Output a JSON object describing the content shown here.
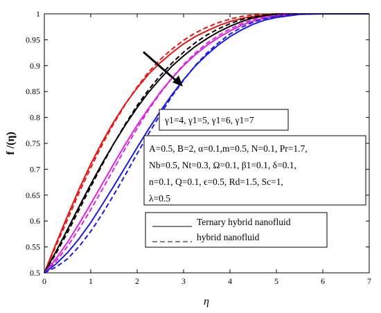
{
  "chart_data": {
    "type": "line",
    "title": "",
    "xlabel": "η",
    "ylabel": "f /(η)",
    "xlim": [
      0,
      7
    ],
    "ylim": [
      0.5,
      1
    ],
    "x_ticks": [
      "0",
      "1",
      "2",
      "3",
      "4",
      "5",
      "6",
      "7"
    ],
    "y_ticks": [
      "0.5",
      "0.55",
      "0.6",
      "0.65",
      "0.7",
      "0.75",
      "0.8",
      "0.85",
      "0.9",
      "0.95",
      "1"
    ],
    "gamma_label": "γ1=4, γ1=5, γ1=6, γ1=7",
    "params_lines": [
      "A=0.5, B=2, α=0.1,m=0.5, N=0.1, Pr=1.7,",
      "Nb=0.5, Nt=0.3, Ω=0.1, β1=0.1, δ=0.1,",
      "n=0.1, Q=0.1, ϵ=0.5, Rd=1.5, Sc=1,",
      "λ=0.5"
    ],
    "legend": [
      {
        "label": "Ternary hybrid nanofluid",
        "dash": "solid"
      },
      {
        "label": "hybrid nanofluid",
        "dash": "dashed"
      }
    ],
    "arrow_direction": "increasing γ1",
    "x": [
      0,
      0.25,
      0.5,
      0.75,
      1,
      1.25,
      1.5,
      1.75,
      2,
      2.25,
      2.5,
      2.75,
      3,
      3.25,
      3.5,
      3.75,
      4,
      4.25,
      4.5,
      4.75,
      5,
      5.5,
      6,
      6.5,
      7
    ],
    "series": [
      {
        "style": "solid",
        "color": "#ee1111",
        "values": [
          0.5,
          0.556,
          0.61,
          0.662,
          0.71,
          0.753,
          0.792,
          0.827,
          0.857,
          0.884,
          0.906,
          0.925,
          0.942,
          0.956,
          0.967,
          0.977,
          0.985,
          0.991,
          0.995,
          0.998,
          1.0,
          1.0,
          1.0,
          1.0,
          1.0
        ]
      },
      {
        "style": "dashed",
        "color": "#ee1111",
        "values": [
          0.5,
          0.552,
          0.603,
          0.655,
          0.703,
          0.748,
          0.789,
          0.826,
          0.859,
          0.888,
          0.912,
          0.932,
          0.949,
          0.963,
          0.974,
          0.983,
          0.99,
          0.995,
          0.998,
          0.999,
          1.0,
          1.0,
          1.0,
          1.0,
          1.0
        ]
      },
      {
        "style": "solid",
        "color": "#000000",
        "values": [
          0.5,
          0.541,
          0.584,
          0.628,
          0.671,
          0.712,
          0.75,
          0.786,
          0.819,
          0.849,
          0.875,
          0.899,
          0.919,
          0.937,
          0.952,
          0.965,
          0.976,
          0.985,
          0.992,
          0.996,
          0.999,
          1.0,
          1.0,
          1.0,
          1.0
        ]
      },
      {
        "style": "dashed",
        "color": "#000000",
        "values": [
          0.5,
          0.537,
          0.578,
          0.622,
          0.666,
          0.709,
          0.75,
          0.788,
          0.823,
          0.854,
          0.881,
          0.905,
          0.926,
          0.944,
          0.959,
          0.971,
          0.981,
          0.989,
          0.994,
          0.997,
          0.999,
          1.0,
          1.0,
          1.0,
          1.0
        ]
      },
      {
        "style": "solid",
        "color": "#e020e0",
        "values": [
          0.5,
          0.527,
          0.559,
          0.595,
          0.633,
          0.672,
          0.711,
          0.749,
          0.785,
          0.818,
          0.849,
          0.876,
          0.9,
          0.921,
          0.939,
          0.954,
          0.967,
          0.978,
          0.986,
          0.992,
          0.996,
          1.0,
          1.0,
          1.0,
          1.0
        ]
      },
      {
        "style": "dashed",
        "color": "#e020e0",
        "values": [
          0.5,
          0.522,
          0.551,
          0.585,
          0.622,
          0.661,
          0.701,
          0.741,
          0.779,
          0.815,
          0.847,
          0.876,
          0.902,
          0.924,
          0.943,
          0.958,
          0.971,
          0.981,
          0.989,
          0.994,
          0.997,
          1.0,
          1.0,
          1.0,
          1.0
        ]
      },
      {
        "style": "solid",
        "color": "#1a1ae6",
        "values": [
          0.5,
          0.517,
          0.539,
          0.566,
          0.597,
          0.632,
          0.668,
          0.705,
          0.742,
          0.778,
          0.812,
          0.844,
          0.873,
          0.899,
          0.921,
          0.94,
          0.956,
          0.969,
          0.98,
          0.988,
          0.993,
          0.999,
          1.0,
          1.0,
          1.0
        ]
      },
      {
        "style": "dashed",
        "color": "#1a1ae6",
        "values": [
          0.5,
          0.511,
          0.527,
          0.551,
          0.58,
          0.614,
          0.651,
          0.69,
          0.73,
          0.769,
          0.806,
          0.841,
          0.872,
          0.9,
          0.924,
          0.944,
          0.961,
          0.974,
          0.984,
          0.991,
          0.995,
          1.0,
          1.0,
          1.0,
          1.0
        ]
      }
    ]
  }
}
